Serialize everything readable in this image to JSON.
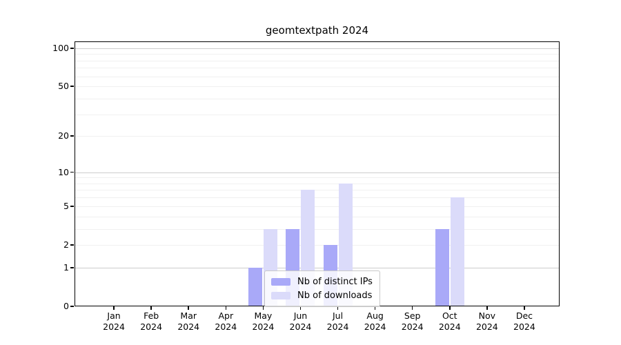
{
  "chart_data": {
    "type": "bar",
    "title": "geomtextpath 2024",
    "categories": [
      {
        "label": "Jan",
        "sub": "2024"
      },
      {
        "label": "Feb",
        "sub": "2024"
      },
      {
        "label": "Mar",
        "sub": "2024"
      },
      {
        "label": "Apr",
        "sub": "2024"
      },
      {
        "label": "May",
        "sub": "2024"
      },
      {
        "label": "Jun",
        "sub": "2024"
      },
      {
        "label": "Jul",
        "sub": "2024"
      },
      {
        "label": "Aug",
        "sub": "2024"
      },
      {
        "label": "Sep",
        "sub": "2024"
      },
      {
        "label": "Oct",
        "sub": "2024"
      },
      {
        "label": "Nov",
        "sub": "2024"
      },
      {
        "label": "Dec",
        "sub": "2024"
      }
    ],
    "series": [
      {
        "name": "Nb of distinct IPs",
        "color": "#a9a9f8",
        "values": [
          0,
          0,
          0,
          0,
          1,
          3,
          2,
          0,
          0,
          3,
          0,
          0
        ]
      },
      {
        "name": "Nb of downloads",
        "color": "#dbdbfa",
        "values": [
          0,
          0,
          0,
          0,
          3,
          7,
          8,
          0,
          0,
          6,
          0,
          0
        ]
      }
    ],
    "xlabel": "",
    "ylabel": "",
    "yscale": "log1p",
    "ylim": [
      0,
      113
    ],
    "yticks": [
      0,
      1,
      2,
      5,
      10,
      20,
      50,
      100
    ],
    "major_gridlines": [
      1,
      10,
      100
    ],
    "minor_gridlines": [
      2,
      3,
      4,
      5,
      6,
      7,
      8,
      9,
      20,
      30,
      40,
      50,
      60,
      70,
      80,
      90
    ],
    "grid": true,
    "legend_position": "inside lower center",
    "colors": {
      "major_grid": "#cccccc",
      "minor_grid": "#f0f0f0",
      "axis": "#000000",
      "legend_border": "#c8c8c8"
    }
  }
}
